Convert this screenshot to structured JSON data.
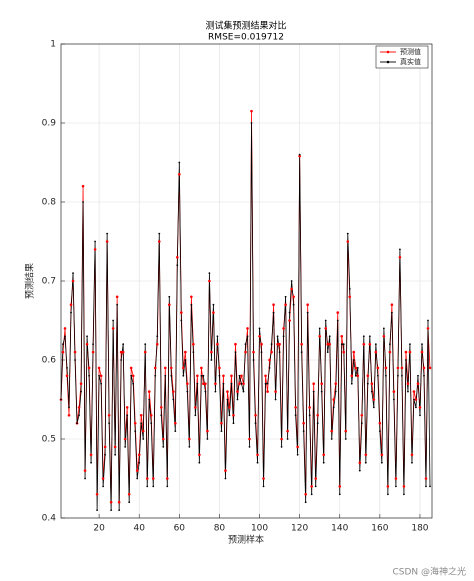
{
  "chart_data": {
    "type": "line",
    "title": "测试集预测结果对比",
    "subtitle": "RMSE=0.019712",
    "xlabel": "预测样本",
    "ylabel": "预测结果",
    "xlim": [
      1,
      186
    ],
    "ylim": [
      0.4,
      1
    ],
    "xticks": [
      20,
      40,
      60,
      80,
      100,
      120,
      140,
      160,
      180
    ],
    "yticks": [
      0.4,
      0.5,
      0.6,
      0.7,
      0.8,
      0.9,
      1
    ],
    "grid": true,
    "legend_position": "upper-right",
    "x": [
      1,
      2,
      3,
      4,
      5,
      6,
      7,
      8,
      9,
      10,
      11,
      12,
      13,
      14,
      15,
      16,
      17,
      18,
      19,
      20,
      21,
      22,
      23,
      24,
      25,
      26,
      27,
      28,
      29,
      30,
      31,
      32,
      33,
      34,
      35,
      36,
      37,
      38,
      39,
      40,
      41,
      42,
      43,
      44,
      45,
      46,
      47,
      48,
      49,
      50,
      51,
      52,
      53,
      54,
      55,
      56,
      57,
      58,
      59,
      60,
      61,
      62,
      63,
      64,
      65,
      66,
      67,
      68,
      69,
      70,
      71,
      72,
      73,
      74,
      75,
      76,
      77,
      78,
      79,
      80,
      81,
      82,
      83,
      84,
      85,
      86,
      87,
      88,
      89,
      90,
      91,
      92,
      93,
      94,
      95,
      96,
      97,
      98,
      99,
      100,
      101,
      102,
      103,
      104,
      105,
      106,
      107,
      108,
      109,
      110,
      111,
      112,
      113,
      114,
      115,
      116,
      117,
      118,
      119,
      120,
      121,
      122,
      123,
      124,
      125,
      126,
      127,
      128,
      129,
      130,
      131,
      132,
      133,
      134,
      135,
      136,
      137,
      138,
      139,
      140,
      141,
      142,
      143,
      144,
      145,
      146,
      147,
      148,
      149,
      150,
      151,
      152,
      153,
      154,
      155,
      156,
      157,
      158,
      159,
      160,
      161,
      162,
      163,
      164,
      165,
      166,
      167,
      168,
      169,
      170,
      171,
      172,
      173,
      174,
      175,
      176,
      177,
      178,
      179,
      180,
      181,
      182,
      183,
      184,
      185
    ],
    "series": [
      {
        "name": "预测值",
        "color": "#ff0000",
        "marker": "star",
        "values": [
          0.55,
          0.61,
          0.64,
          0.58,
          0.53,
          0.67,
          0.7,
          0.61,
          0.52,
          0.54,
          0.57,
          0.82,
          0.46,
          0.62,
          0.59,
          0.48,
          0.61,
          0.74,
          0.43,
          0.59,
          0.58,
          0.45,
          0.49,
          0.75,
          0.53,
          0.42,
          0.64,
          0.49,
          0.68,
          0.42,
          0.61,
          0.61,
          0.5,
          0.54,
          0.43,
          0.59,
          0.58,
          0.52,
          0.46,
          0.48,
          0.53,
          0.51,
          0.61,
          0.45,
          0.56,
          0.53,
          0.45,
          0.59,
          0.62,
          0.75,
          0.54,
          0.5,
          0.59,
          0.45,
          0.67,
          0.59,
          0.56,
          0.52,
          0.73,
          0.835,
          0.66,
          0.59,
          0.61,
          0.57,
          0.5,
          0.68,
          0.62,
          0.54,
          0.58,
          0.48,
          0.59,
          0.57,
          0.57,
          0.51,
          0.7,
          0.61,
          0.66,
          0.57,
          0.62,
          0.59,
          0.52,
          0.58,
          0.46,
          0.56,
          0.54,
          0.58,
          0.53,
          0.62,
          0.56,
          0.57,
          0.58,
          0.57,
          0.61,
          0.64,
          0.5,
          0.915,
          0.61,
          0.53,
          0.48,
          0.63,
          0.62,
          0.45,
          0.58,
          0.56,
          0.6,
          0.61,
          0.67,
          0.56,
          0.62,
          0.62,
          0.5,
          0.64,
          0.67,
          0.51,
          0.65,
          0.69,
          0.68,
          0.54,
          0.49,
          0.858,
          0.62,
          0.52,
          0.43,
          0.67,
          0.54,
          0.44,
          0.57,
          0.45,
          0.53,
          0.63,
          0.57,
          0.48,
          0.64,
          0.62,
          0.62,
          0.51,
          0.55,
          0.57,
          0.66,
          0.44,
          0.63,
          0.61,
          0.51,
          0.75,
          0.68,
          0.58,
          0.61,
          0.59,
          0.58,
          0.47,
          0.53,
          0.62,
          0.48,
          0.58,
          0.62,
          0.57,
          0.55,
          0.61,
          0.59,
          0.52,
          0.48,
          0.63,
          0.59,
          0.44,
          0.61,
          0.67,
          0.56,
          0.45,
          0.59,
          0.73,
          0.59,
          0.44,
          0.61,
          0.57,
          0.61,
          0.48,
          0.56,
          0.55,
          0.57,
          0.54,
          0.61,
          0.59,
          0.45,
          0.64,
          0.59
        ]
      },
      {
        "name": "真实值",
        "color": "#000000",
        "marker": "dot",
        "values": [
          0.55,
          0.62,
          0.63,
          0.59,
          0.54,
          0.66,
          0.71,
          0.6,
          0.52,
          0.53,
          0.56,
          0.8,
          0.45,
          0.63,
          0.58,
          0.47,
          0.62,
          0.75,
          0.41,
          0.58,
          0.57,
          0.44,
          0.48,
          0.76,
          0.52,
          0.41,
          0.65,
          0.48,
          0.67,
          0.41,
          0.6,
          0.62,
          0.49,
          0.53,
          0.42,
          0.58,
          0.57,
          0.51,
          0.45,
          0.47,
          0.52,
          0.5,
          0.62,
          0.44,
          0.55,
          0.52,
          0.44,
          0.58,
          0.63,
          0.76,
          0.53,
          0.49,
          0.58,
          0.44,
          0.68,
          0.58,
          0.55,
          0.51,
          0.72,
          0.85,
          0.65,
          0.58,
          0.6,
          0.56,
          0.49,
          0.67,
          0.61,
          0.53,
          0.57,
          0.47,
          0.58,
          0.58,
          0.56,
          0.5,
          0.71,
          0.6,
          0.67,
          0.56,
          0.63,
          0.58,
          0.51,
          0.57,
          0.45,
          0.55,
          0.53,
          0.57,
          0.52,
          0.61,
          0.55,
          0.58,
          0.57,
          0.56,
          0.62,
          0.63,
          0.49,
          0.9,
          0.6,
          0.52,
          0.47,
          0.64,
          0.61,
          0.44,
          0.57,
          0.57,
          0.59,
          0.62,
          0.66,
          0.55,
          0.63,
          0.61,
          0.49,
          0.63,
          0.68,
          0.5,
          0.66,
          0.7,
          0.67,
          0.53,
          0.48,
          0.86,
          0.61,
          0.51,
          0.42,
          0.66,
          0.53,
          0.43,
          0.56,
          0.44,
          0.52,
          0.64,
          0.56,
          0.47,
          0.65,
          0.61,
          0.63,
          0.5,
          0.54,
          0.56,
          0.65,
          0.43,
          0.62,
          0.62,
          0.5,
          0.76,
          0.69,
          0.57,
          0.6,
          0.58,
          0.59,
          0.46,
          0.52,
          0.63,
          0.47,
          0.57,
          0.63,
          0.56,
          0.54,
          0.62,
          0.58,
          0.51,
          0.47,
          0.64,
          0.58,
          0.43,
          0.62,
          0.66,
          0.55,
          0.44,
          0.58,
          0.74,
          0.58,
          0.43,
          0.6,
          0.56,
          0.62,
          0.47,
          0.55,
          0.54,
          0.58,
          0.53,
          0.62,
          0.58,
          0.44,
          0.65,
          0.44
        ]
      }
    ]
  },
  "watermark": "CSDN @海神之光"
}
